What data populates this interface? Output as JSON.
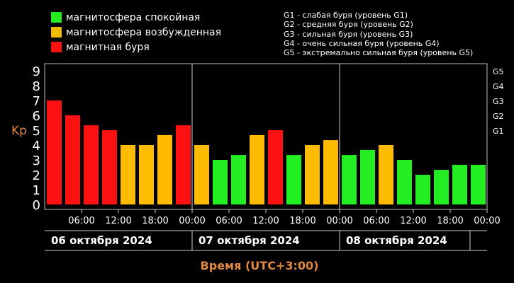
{
  "legend": {
    "items": [
      {
        "label": "магнитосфера спокойная",
        "color": "#22ee22"
      },
      {
        "label": "магнитосфера возбужденная",
        "color": "#eebb00"
      },
      {
        "label": "магнитная буря",
        "color": "#ff1111"
      }
    ]
  },
  "g_scale": [
    "G1 - слабая буря (уровень G1)",
    "G2 - средняя буря (уровень G2)",
    "G3 - сильная буря (уровень G3)",
    "G4 - очень сильная буря (уровень G4)",
    "G5 - экстремально сильная буря (уровень G5)"
  ],
  "chart_data": {
    "type": "bar",
    "ylabel": "Kp",
    "xlabel": "Время (UTC+3:00)",
    "ylim": [
      0,
      9
    ],
    "y_ticks": [
      "0",
      "1",
      "2",
      "3",
      "4",
      "5",
      "6",
      "7",
      "8",
      "9"
    ],
    "right_axis_ticks": [
      {
        "label": "G1",
        "value": 5
      },
      {
        "label": "G2",
        "value": 6
      },
      {
        "label": "G3",
        "value": 7
      },
      {
        "label": "G4",
        "value": 8
      },
      {
        "label": "G5",
        "value": 9
      }
    ],
    "x_tick_labels": [
      "06:00",
      "12:00",
      "18:00",
      "00:00",
      "06:00",
      "12:00",
      "18:00",
      "00:00",
      "06:00",
      "12:00",
      "18:00",
      "00:00"
    ],
    "days": [
      "06 октября 2024",
      "07 октября 2024",
      "08 октября 2024"
    ],
    "values": [
      7.0,
      6.0,
      5.33,
      5.0,
      4.0,
      4.0,
      4.67,
      5.33,
      4.0,
      3.0,
      3.33,
      4.67,
      5.0,
      3.33,
      4.0,
      4.33,
      3.33,
      3.67,
      4.0,
      3.0,
      2.0,
      2.33,
      2.67,
      2.67
    ],
    "colors": {
      "quiet": "#22ee22",
      "active": "#ffbb00",
      "storm": "#ff1111"
    },
    "grid": false
  }
}
